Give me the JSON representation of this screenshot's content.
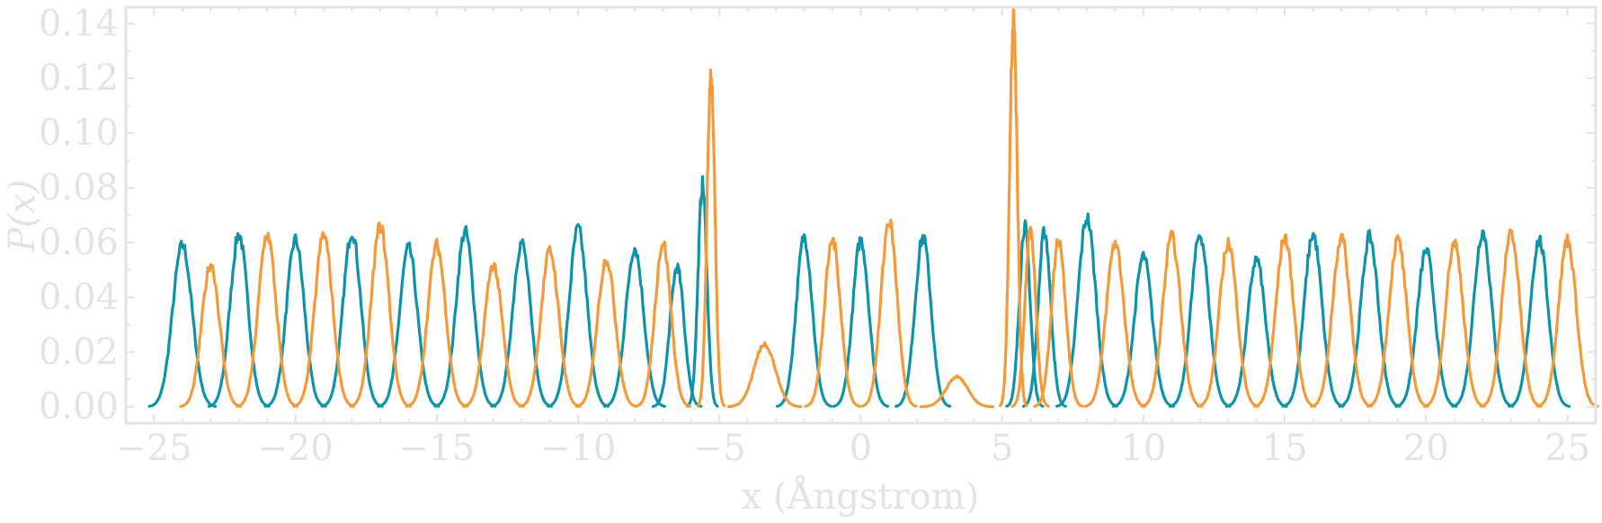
{
  "chart_data": {
    "type": "line",
    "xlabel": "x (Ångstrom)",
    "ylabel": "P(x)",
    "xlim": [
      -26,
      26
    ],
    "ylim": [
      -0.006,
      0.146
    ],
    "xticks": [
      -25,
      -20,
      -15,
      -10,
      -5,
      0,
      5,
      10,
      15,
      20,
      25
    ],
    "xtick_labels": [
      "−25",
      "−20",
      "−15",
      "−10",
      "−5",
      "0",
      "5",
      "10",
      "15",
      "20",
      "25"
    ],
    "yticks": [
      0.0,
      0.02,
      0.04,
      0.06,
      0.08,
      0.1,
      0.12,
      0.14
    ],
    "ytick_labels": [
      "0.00",
      "0.02",
      "0.04",
      "0.06",
      "0.08",
      "0.10",
      "0.12",
      "0.14"
    ],
    "grid": false,
    "colors": {
      "blue": "#0d93aa",
      "orange": "#f59a38",
      "axis": "#e3e3e3"
    },
    "series": [
      {
        "color": "blue",
        "peaks": [
          {
            "center": -24.0,
            "height": 0.059,
            "width": 0.55
          },
          {
            "center": -22.0,
            "height": 0.063,
            "width": 0.5
          },
          {
            "center": -20.0,
            "height": 0.061,
            "width": 0.5
          },
          {
            "center": -18.0,
            "height": 0.064,
            "width": 0.5
          },
          {
            "center": -16.0,
            "height": 0.058,
            "width": 0.5
          },
          {
            "center": -14.0,
            "height": 0.064,
            "width": 0.5
          },
          {
            "center": -12.0,
            "height": 0.06,
            "width": 0.5
          },
          {
            "center": -10.0,
            "height": 0.065,
            "width": 0.5
          },
          {
            "center": -8.0,
            "height": 0.058,
            "width": 0.5
          },
          {
            "center": -6.5,
            "height": 0.051,
            "width": 0.4
          },
          {
            "center": -5.6,
            "height": 0.081,
            "width": 0.25
          },
          {
            "center": -2.0,
            "height": 0.062,
            "width": 0.45
          },
          {
            "center": 0.0,
            "height": 0.061,
            "width": 0.45
          },
          {
            "center": 2.2,
            "height": 0.062,
            "width": 0.45
          },
          {
            "center": 5.8,
            "height": 0.066,
            "width": 0.3
          },
          {
            "center": 6.5,
            "height": 0.064,
            "width": 0.35
          },
          {
            "center": 8.0,
            "height": 0.069,
            "width": 0.5
          },
          {
            "center": 10.0,
            "height": 0.055,
            "width": 0.5
          },
          {
            "center": 12.0,
            "height": 0.063,
            "width": 0.5
          },
          {
            "center": 14.0,
            "height": 0.054,
            "width": 0.5
          },
          {
            "center": 16.0,
            "height": 0.063,
            "width": 0.5
          },
          {
            "center": 18.0,
            "height": 0.062,
            "width": 0.5
          },
          {
            "center": 20.0,
            "height": 0.057,
            "width": 0.5
          },
          {
            "center": 22.0,
            "height": 0.064,
            "width": 0.5
          },
          {
            "center": 24.0,
            "height": 0.061,
            "width": 0.5
          }
        ]
      },
      {
        "color": "orange",
        "peaks": [
          {
            "center": -23.0,
            "height": 0.052,
            "width": 0.5
          },
          {
            "center": -21.0,
            "height": 0.063,
            "width": 0.5
          },
          {
            "center": -19.0,
            "height": 0.063,
            "width": 0.5
          },
          {
            "center": -17.0,
            "height": 0.066,
            "width": 0.5
          },
          {
            "center": -15.0,
            "height": 0.059,
            "width": 0.5
          },
          {
            "center": -13.0,
            "height": 0.052,
            "width": 0.5
          },
          {
            "center": -11.0,
            "height": 0.057,
            "width": 0.5
          },
          {
            "center": -9.0,
            "height": 0.054,
            "width": 0.5
          },
          {
            "center": -7.0,
            "height": 0.06,
            "width": 0.45
          },
          {
            "center": -5.3,
            "height": 0.122,
            "width": 0.22
          },
          {
            "center": -3.4,
            "height": 0.023,
            "width": 0.6
          },
          {
            "center": -1.0,
            "height": 0.061,
            "width": 0.45
          },
          {
            "center": 1.0,
            "height": 0.068,
            "width": 0.45
          },
          {
            "center": 3.4,
            "height": 0.011,
            "width": 0.6
          },
          {
            "center": 5.4,
            "height": 0.14,
            "width": 0.22
          },
          {
            "center": 6.0,
            "height": 0.065,
            "width": 0.3
          },
          {
            "center": 7.0,
            "height": 0.061,
            "width": 0.4
          },
          {
            "center": 9.0,
            "height": 0.06,
            "width": 0.5
          },
          {
            "center": 11.0,
            "height": 0.062,
            "width": 0.5
          },
          {
            "center": 13.0,
            "height": 0.06,
            "width": 0.5
          },
          {
            "center": 15.0,
            "height": 0.062,
            "width": 0.5
          },
          {
            "center": 17.0,
            "height": 0.062,
            "width": 0.5
          },
          {
            "center": 19.0,
            "height": 0.061,
            "width": 0.5
          },
          {
            "center": 21.0,
            "height": 0.06,
            "width": 0.5
          },
          {
            "center": 23.0,
            "height": 0.064,
            "width": 0.5
          },
          {
            "center": 25.0,
            "height": 0.061,
            "width": 0.5
          }
        ]
      }
    ]
  }
}
